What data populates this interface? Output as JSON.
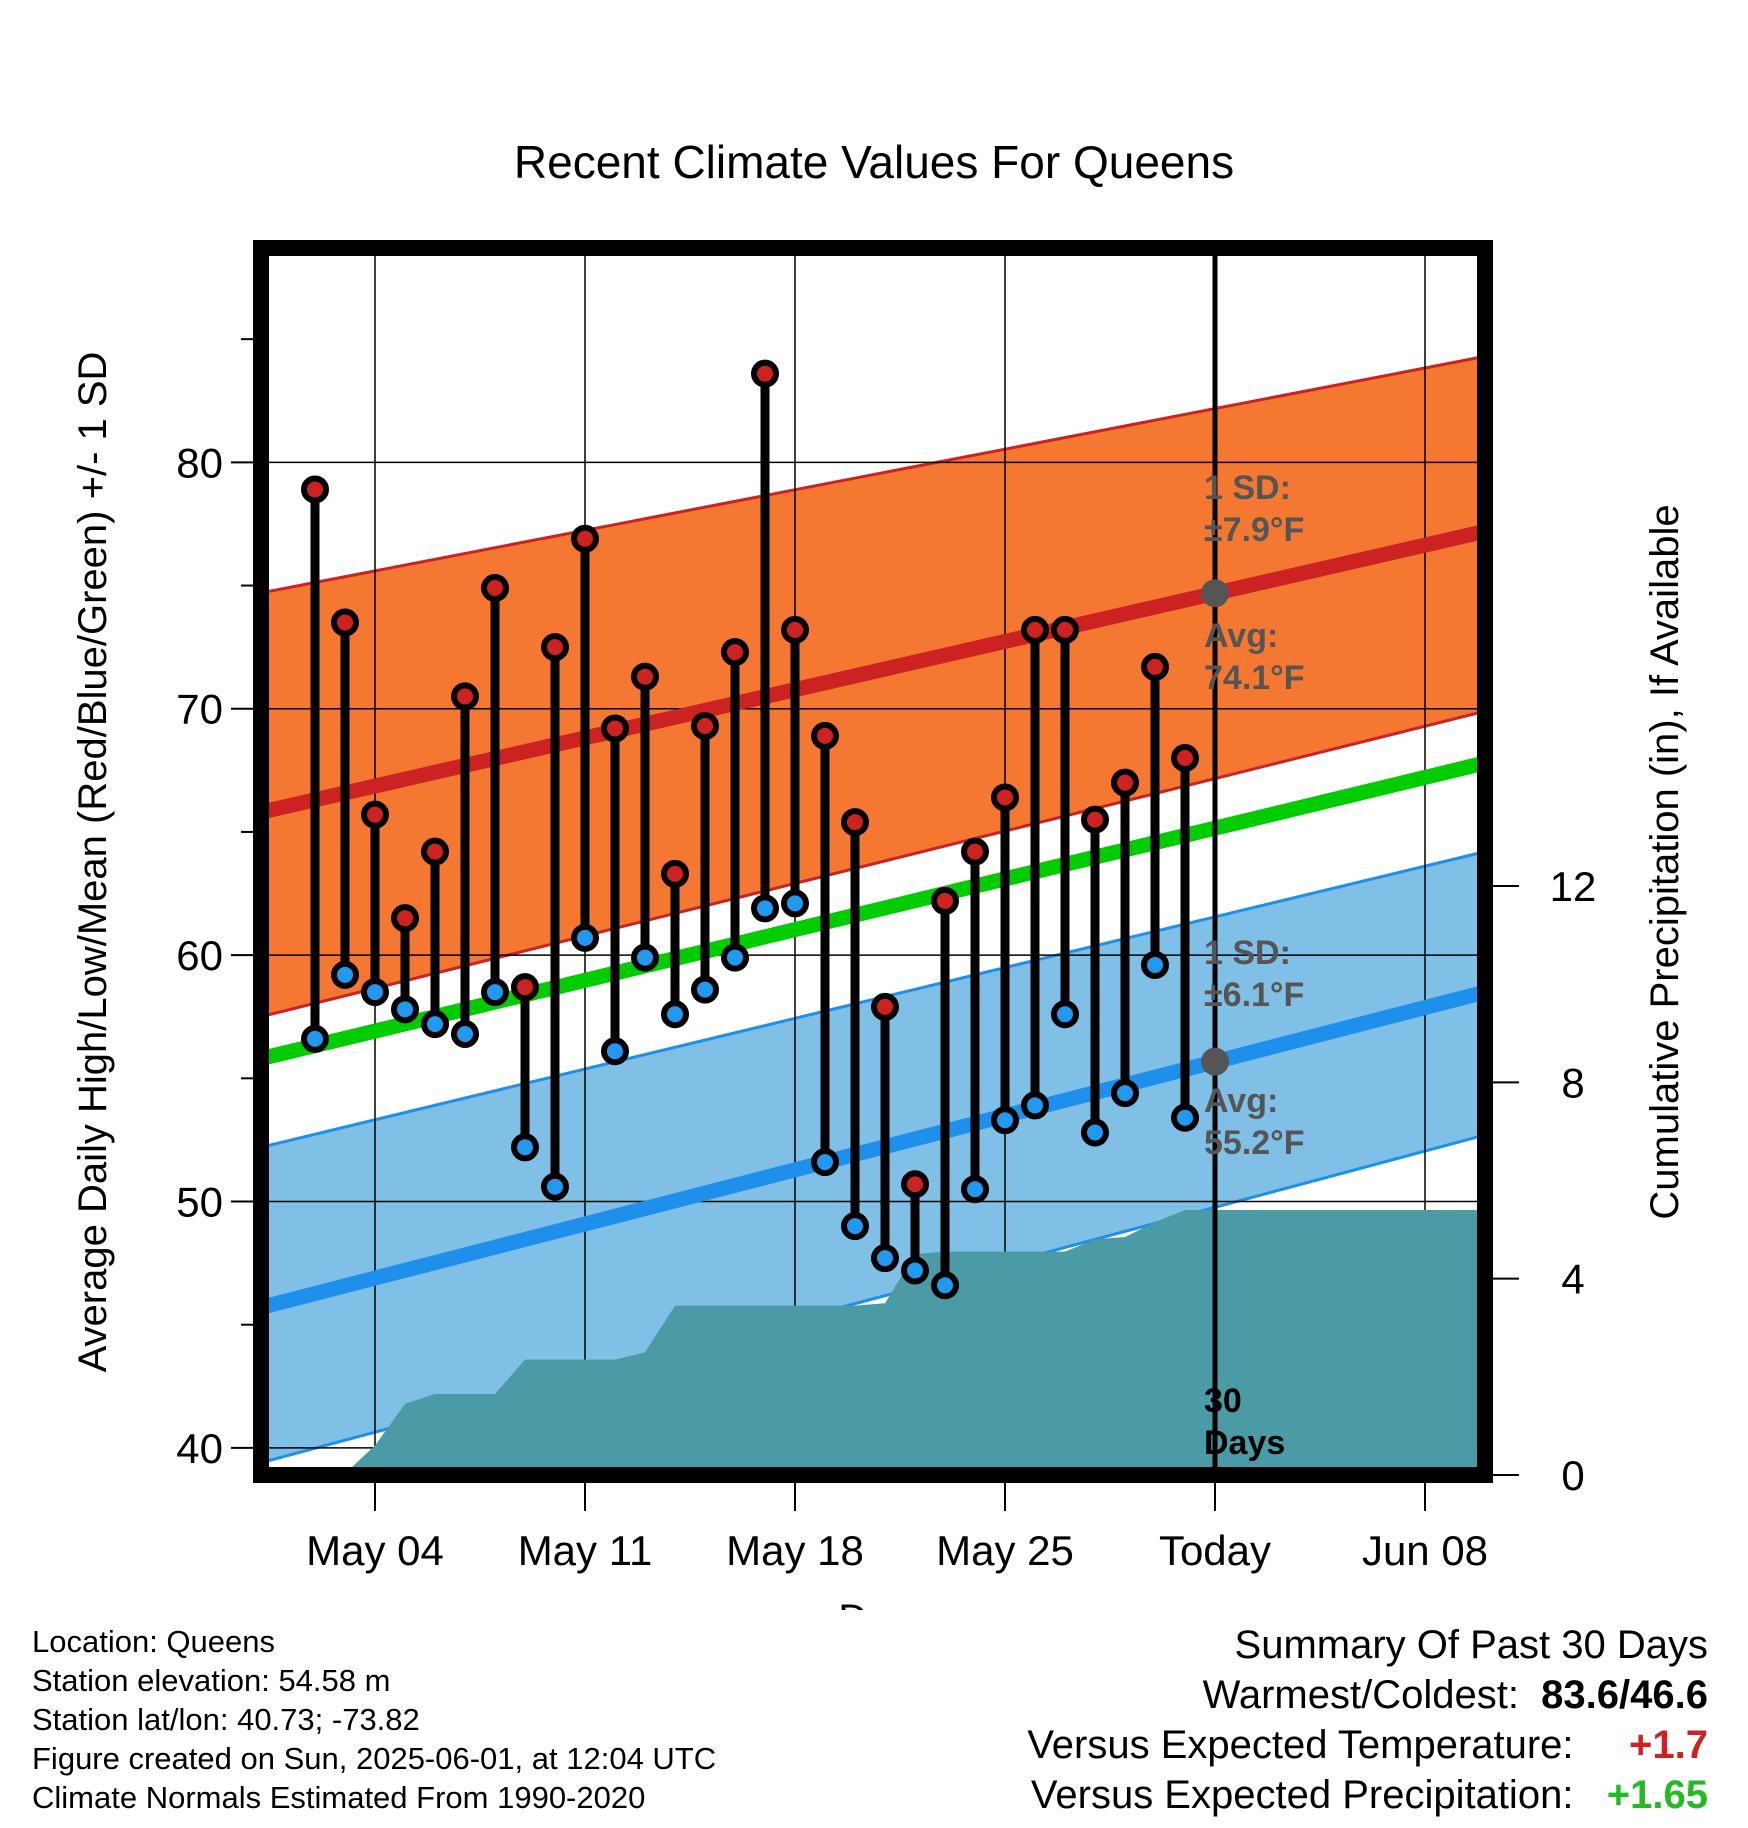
{
  "chart_data": {
    "type": "line",
    "title": "Recent Climate Values For Queens",
    "xlabel": "Day",
    "ylabel": "Average Daily High/Low/Mean (Red/Blue/Green) +/- 1 SD",
    "ylabel_right": "Cumulative Precipitation (in), If Available",
    "ylim": [
      38.9,
      88.7
    ],
    "ylim_right": [
      0,
      25.0
    ],
    "y_ticks": [
      40,
      50,
      60,
      70,
      80
    ],
    "y_ticks_right": [
      0,
      4,
      8,
      12
    ],
    "x_tick_labels": [
      "May 04",
      "May 11",
      "May 18",
      "May 25",
      "Today",
      "Jun 08"
    ],
    "x_tick_days": [
      4,
      11,
      18,
      25,
      32,
      39
    ],
    "x_range_days": [
      0.2,
      41.0
    ],
    "grid": true,
    "today_day": 32,
    "daily": {
      "day": [
        2,
        3,
        4,
        5,
        6,
        7,
        8,
        9,
        10,
        11,
        12,
        13,
        14,
        15,
        16,
        17,
        18,
        19,
        20,
        21,
        22,
        23,
        24,
        25,
        26,
        27,
        28,
        29,
        30,
        31
      ],
      "high": [
        78.9,
        73.5,
        65.7,
        61.5,
        64.2,
        70.5,
        74.9,
        58.7,
        72.5,
        76.9,
        69.2,
        71.3,
        63.3,
        69.3,
        72.3,
        83.6,
        73.2,
        68.9,
        65.4,
        57.9,
        50.7,
        62.2,
        64.2,
        66.4,
        73.2,
        73.2,
        65.5,
        67.0,
        71.7,
        68.0
      ],
      "low": [
        56.6,
        59.2,
        58.5,
        57.8,
        57.2,
        56.8,
        58.5,
        52.2,
        50.6,
        60.7,
        56.1,
        59.9,
        57.6,
        58.6,
        59.9,
        61.9,
        62.1,
        51.6,
        49.0,
        47.7,
        47.2,
        46.6,
        50.5,
        53.3,
        53.9,
        57.6,
        52.8,
        54.4,
        59.6,
        53.4
      ]
    },
    "normal_high": {
      "day": [
        0.2,
        41.0
      ],
      "avg": [
        65.8,
        77.2
      ],
      "sd_upper": [
        74.7,
        84.3
      ],
      "sd_lower": [
        57.5,
        69.9
      ]
    },
    "normal_low": {
      "day": [
        0.2,
        41.0
      ],
      "avg": [
        45.7,
        58.5
      ],
      "sd_upper": [
        52.2,
        64.2
      ],
      "sd_lower": [
        39.4,
        52.7
      ]
    },
    "normal_mean": {
      "day": [
        0.2,
        41.0
      ],
      "values": [
        55.8,
        67.8
      ]
    },
    "precip_cumulative": {
      "day": [
        3.0,
        3.3,
        4.0,
        5.0,
        6.0,
        7.0,
        8.0,
        9.0,
        10.0,
        11.0,
        12.0,
        13.0,
        14.0,
        15.0,
        16.0,
        17.0,
        18.0,
        19.0,
        20.0,
        21.0,
        22.0,
        23.0,
        24.0,
        25.0,
        26.0,
        27.0,
        28.0,
        29.0,
        30.0,
        31.0,
        32.0,
        41.0
      ],
      "value": [
        0.0,
        0.2,
        0.6,
        1.45,
        1.65,
        1.65,
        1.65,
        2.35,
        2.35,
        2.35,
        2.35,
        2.5,
        3.45,
        3.45,
        3.45,
        3.45,
        3.45,
        3.45,
        3.45,
        3.5,
        4.5,
        4.55,
        4.55,
        4.55,
        4.55,
        4.55,
        4.8,
        4.85,
        5.15,
        5.4,
        5.4,
        5.4
      ]
    },
    "annotations": {
      "high_sd_label": "1 SD:",
      "high_sd_value": "±7.9°F",
      "high_avg_label": "Avg:",
      "high_avg_value": "74.1°F",
      "low_sd_label": "1 SD:",
      "low_sd_value": "±6.1°F",
      "low_avg_label": "Avg:",
      "low_avg_value": "55.2°F",
      "days_number": "30",
      "days_word": "Days"
    },
    "colors": {
      "high_band": "#F47832",
      "high_line": "#CC2222",
      "low_band": "#80BFE6",
      "low_line": "#1E8FEA",
      "mean_line": "#00CC00",
      "precip": "#4A9BA5",
      "high_dot": "#CC2222",
      "low_dot": "#2299EE",
      "today_dot": "#555555"
    }
  },
  "footer": {
    "location": "Location: Queens",
    "elevation": "Station elevation: 54.58 m",
    "latlon": "Station lat/lon: 40.73; -73.82",
    "created": "Figure created on Sun, 2025-06-01, at 12:04 UTC",
    "normals": "Climate Normals Estimated From 1990-2020"
  },
  "summary": {
    "title": "Summary Of Past 30 Days",
    "warmest_label": "Warmest/Coldest:",
    "warmest_value": "83.6/46.6",
    "temp_label": "Versus Expected Temperature:",
    "temp_value": "+1.7",
    "temp_color": "#CC2222",
    "precip_label": "Versus Expected Precipitation:",
    "precip_value": "+1.65",
    "precip_color": "#22BB22"
  }
}
